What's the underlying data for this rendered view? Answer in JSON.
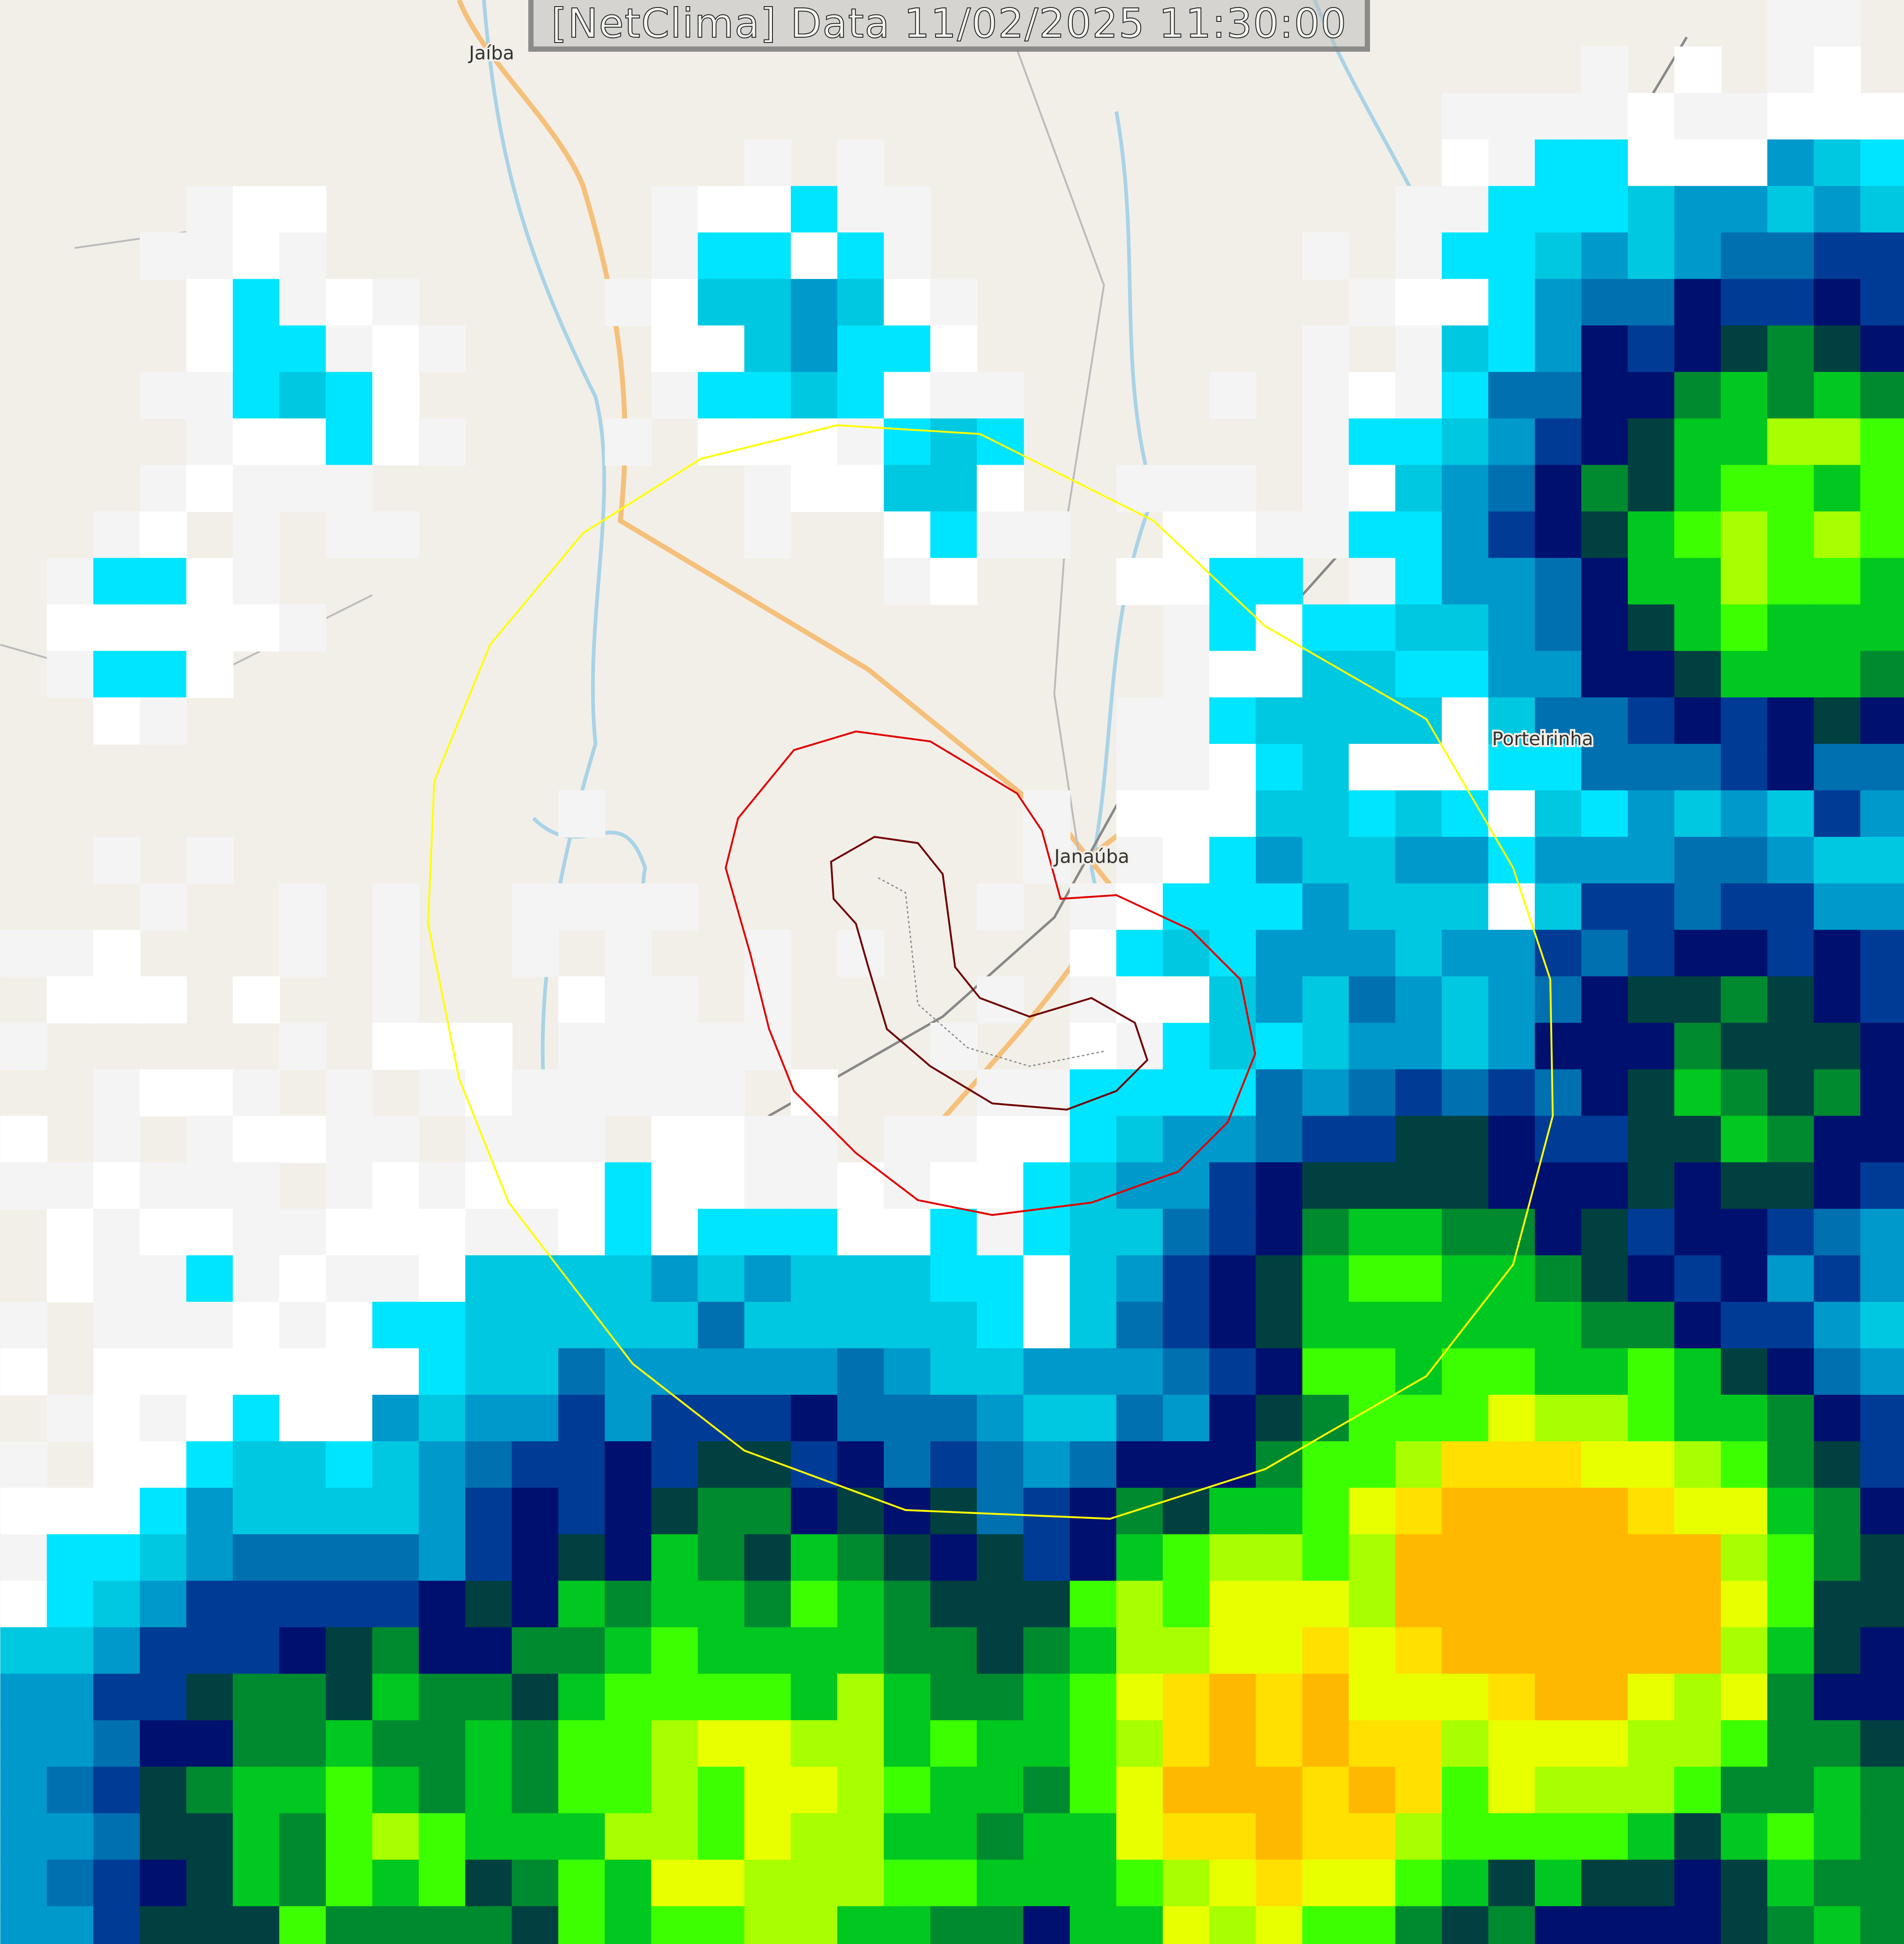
{
  "title": "[NetClima] Data 11/02/2025 11:30:00",
  "places": [
    {
      "name": "Jaíba"
    },
    {
      "name": "Janaúba"
    },
    {
      "name": "Porteirinha"
    }
  ],
  "colors": {
    "background": "#f2efe9",
    "road": "#f5c07a",
    "river": "#a9d3e6",
    "railway": "#888888",
    "yellow_ring": "#ffff00",
    "red_contour": "#e00000",
    "inner_contour": "#700000",
    "radar_scale": [
      "#f4f4f4",
      "#ffffff",
      "#00e5ff",
      "#00c8e0",
      "#0099cc",
      "#0070b0",
      "#003c96",
      "#00106e",
      "#004040",
      "#008a30",
      "#00c820",
      "#3cff00",
      "#a8ff00",
      "#e8ff00",
      "#ffe000",
      "#ffb800"
    ]
  }
}
